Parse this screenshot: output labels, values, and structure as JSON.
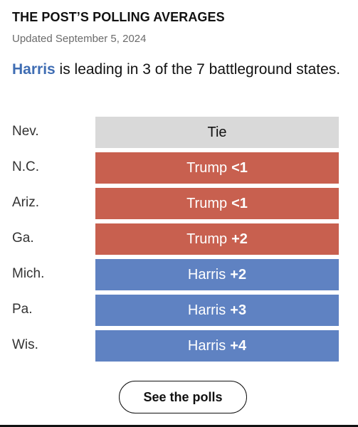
{
  "header": {
    "title": "THE POST’S POLLING AVERAGES",
    "updated": "Updated September 5, 2024"
  },
  "summary": {
    "leader": "Harris",
    "text": " is leading in 3 of the 7 battleground states."
  },
  "colors": {
    "harris": "#5f82c2",
    "trump": "#c8604f",
    "tie": "#d9d9d9",
    "leader_text": "#3f6db3"
  },
  "states": [
    {
      "state": "Nev.",
      "candidate": "Tie",
      "margin": "",
      "party": "tie"
    },
    {
      "state": "N.C.",
      "candidate": "Trump",
      "margin": "<1",
      "party": "trump"
    },
    {
      "state": "Ariz.",
      "candidate": "Trump",
      "margin": "<1",
      "party": "trump"
    },
    {
      "state": "Ga.",
      "candidate": "Trump",
      "margin": "+2",
      "party": "trump"
    },
    {
      "state": "Mich.",
      "candidate": "Harris",
      "margin": "+2",
      "party": "harris"
    },
    {
      "state": "Pa.",
      "candidate": "Harris",
      "margin": "+3",
      "party": "harris"
    },
    {
      "state": "Wis.",
      "candidate": "Harris",
      "margin": "+4",
      "party": "harris"
    }
  ],
  "button": {
    "label": "See the polls"
  }
}
